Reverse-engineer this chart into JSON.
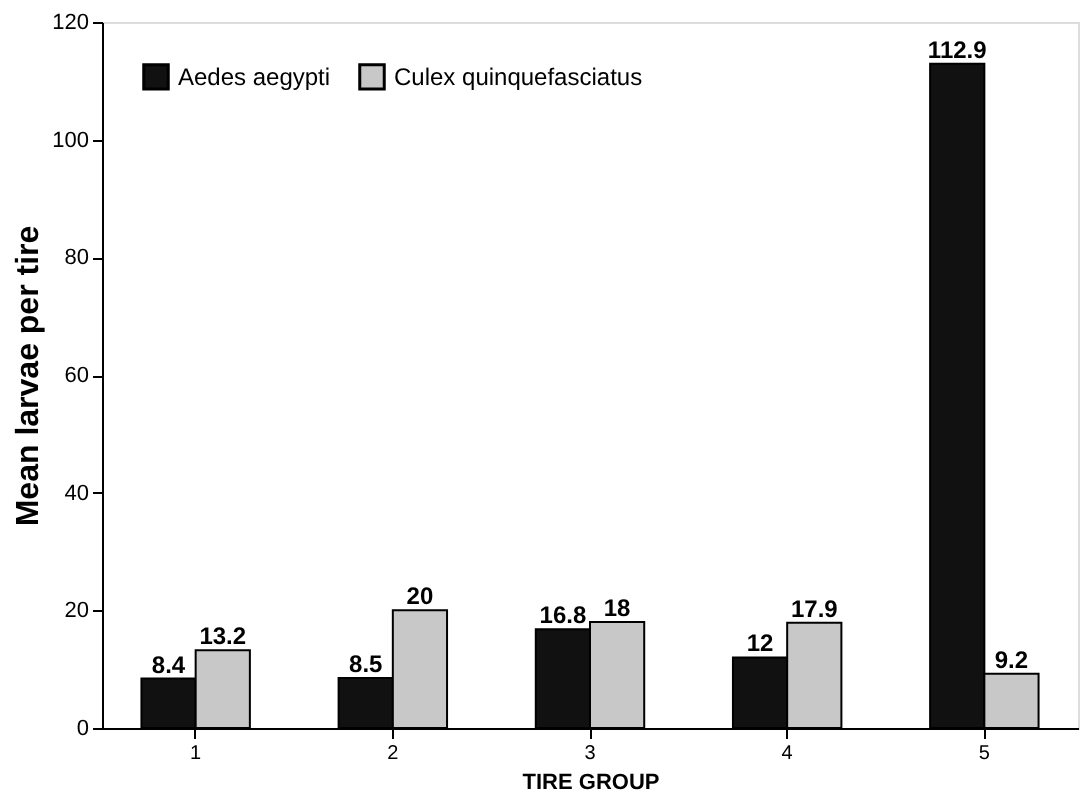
{
  "chart_data": {
    "type": "bar",
    "categories": [
      "1",
      "2",
      "3",
      "4",
      "5"
    ],
    "series": [
      {
        "name": "Aedes aegypti",
        "color": "#111111",
        "values": [
          8.4,
          8.5,
          16.8,
          12,
          112.9
        ]
      },
      {
        "name": "Culex quinquefasciatus",
        "color": "#c8c8c8",
        "values": [
          13.2,
          20,
          18,
          17.9,
          9.2
        ]
      }
    ],
    "xlabel": "TIRE GROUP",
    "ylabel": "Mean larvae per tire",
    "ylim": [
      0,
      120
    ],
    "yticks": [
      0,
      20,
      40,
      60,
      80,
      100,
      120
    ],
    "data_labels": true,
    "legend": "top left",
    "grid": false
  }
}
